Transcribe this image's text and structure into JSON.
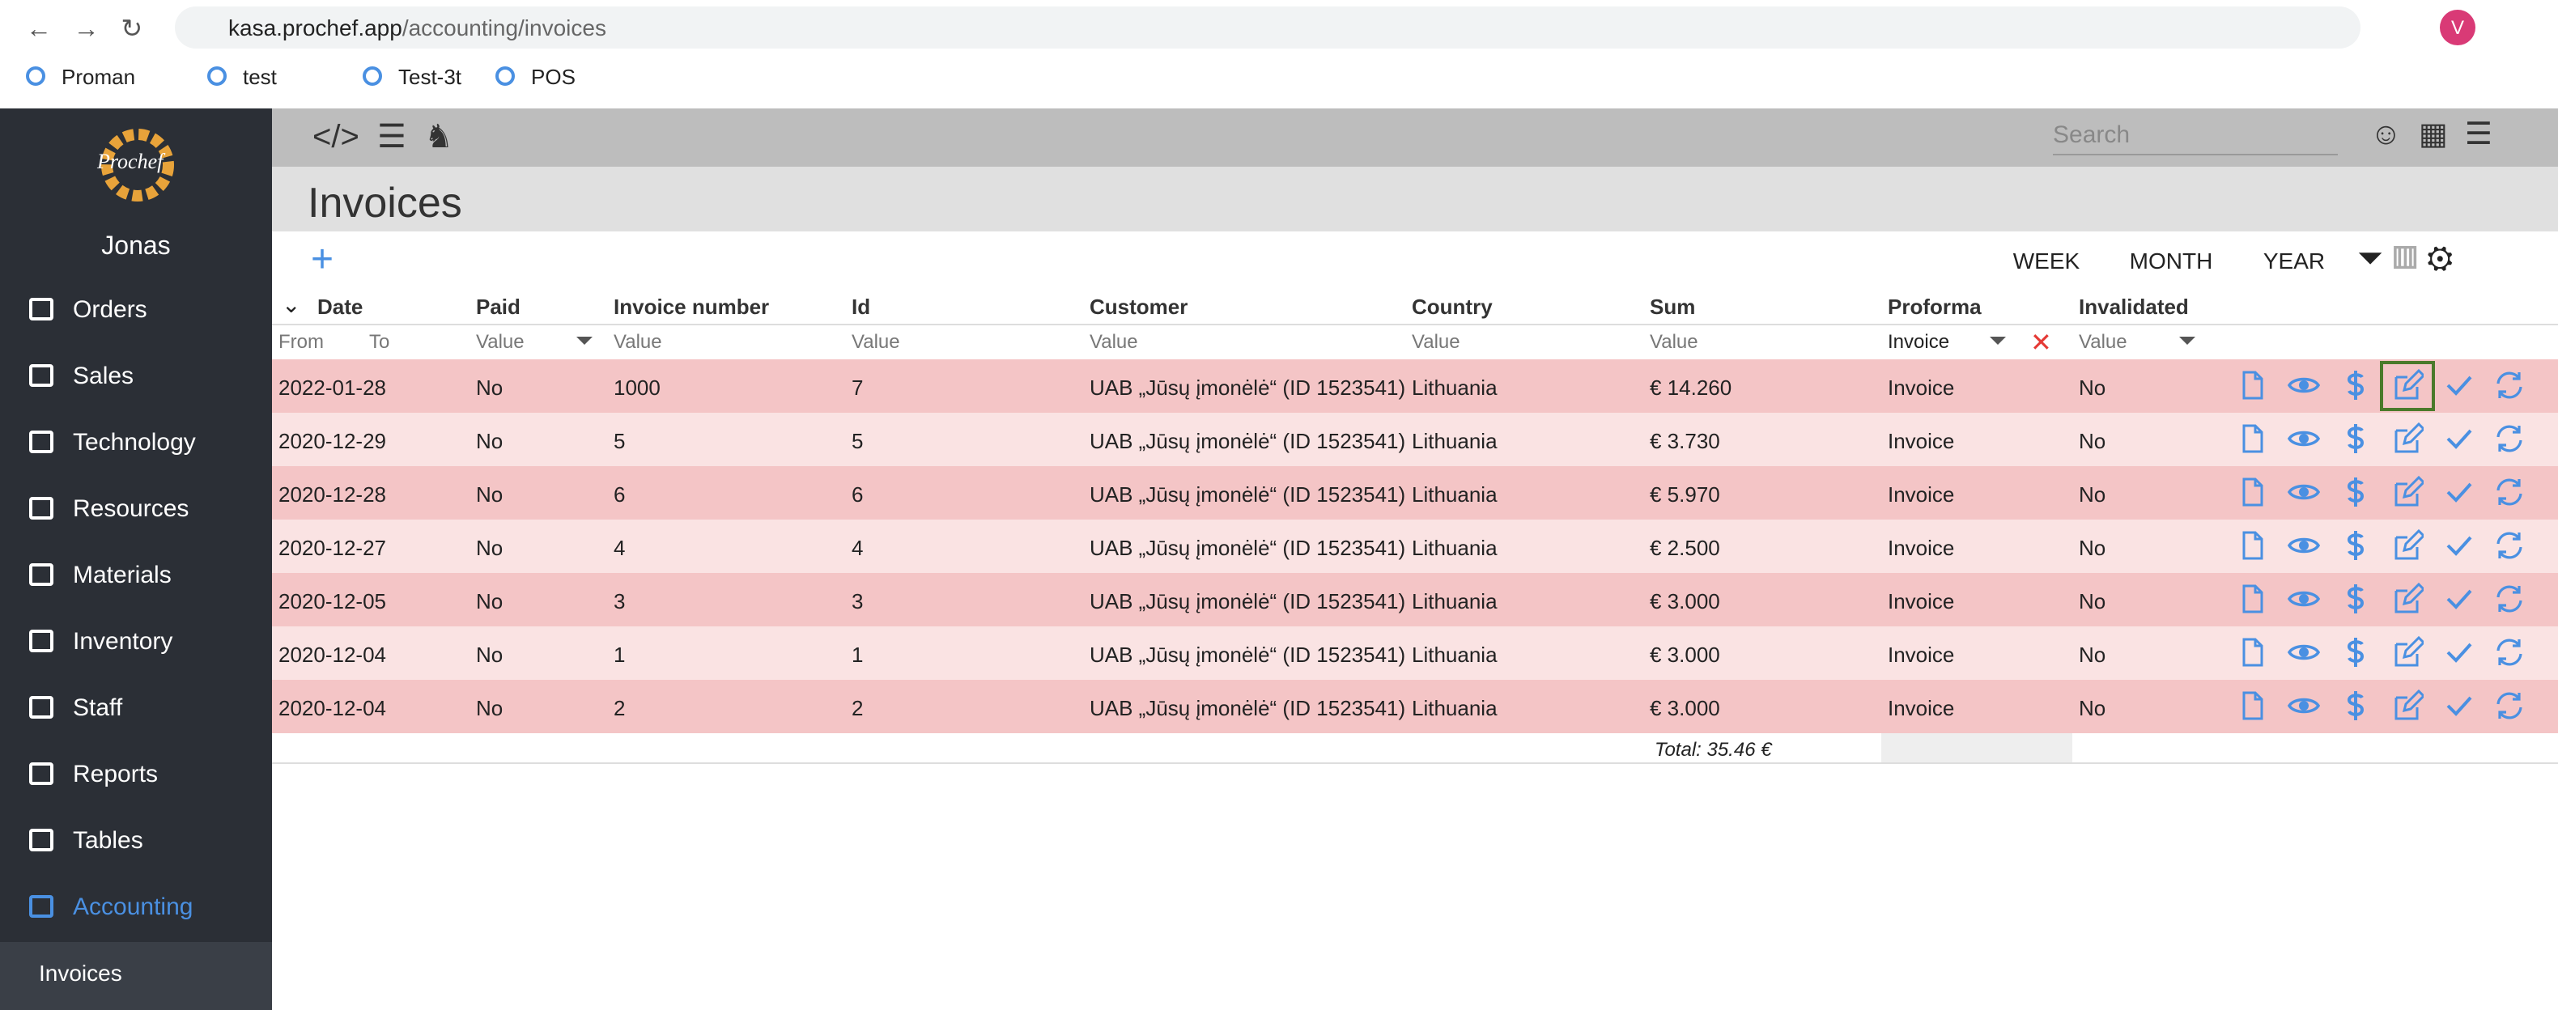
{
  "browser": {
    "url_host": "kasa.prochef.app",
    "url_path": "/accounting/invoices",
    "profile": "V",
    "bookmarks": [
      "Proman",
      "test",
      "Test-3t",
      "POS"
    ]
  },
  "sidebar": {
    "logo": "Prochef",
    "user": "Jonas",
    "nav": [
      "Orders",
      "Sales",
      "Technology",
      "Resources",
      "Materials",
      "Inventory",
      "Staff",
      "Reports",
      "Tables",
      "Accounting"
    ],
    "active_nav": 9,
    "subnav": "Invoices"
  },
  "header": {
    "search_placeholder": "Search",
    "title": "Invoices"
  },
  "toolbar": {
    "periods": [
      "WEEK",
      "MONTH",
      "YEAR"
    ]
  },
  "table": {
    "columns": [
      "Date",
      "Paid",
      "Invoice number",
      "Id",
      "Customer",
      "Country",
      "Sum",
      "Proforma",
      "Invalidated"
    ],
    "filters": [
      "From",
      "To",
      "Value",
      "Value",
      "Value",
      "Value",
      "Value",
      "Value",
      "Invoice",
      "Value"
    ],
    "rows": [
      [
        "2022-01-28",
        "No",
        "1000",
        "7",
        "UAB „Jūsų įmonėlė“ (ID 1523541)",
        "Lithuania",
        "€ 14.260",
        "Invoice",
        "No"
      ],
      [
        "2020-12-29",
        "No",
        "5",
        "5",
        "UAB „Jūsų įmonėlė“ (ID 1523541)",
        "Lithuania",
        "€ 3.730",
        "Invoice",
        "No"
      ],
      [
        "2020-12-28",
        "No",
        "6",
        "6",
        "UAB „Jūsų įmonėlė“ (ID 1523541)",
        "Lithuania",
        "€ 5.970",
        "Invoice",
        "No"
      ],
      [
        "2020-12-27",
        "No",
        "4",
        "4",
        "UAB „Jūsų įmonėlė“ (ID 1523541)",
        "Lithuania",
        "€ 2.500",
        "Invoice",
        "No"
      ],
      [
        "2020-12-05",
        "No",
        "3",
        "3",
        "UAB „Jūsų įmonėlė“ (ID 1523541)",
        "Lithuania",
        "€ 3.000",
        "Invoice",
        "No"
      ],
      [
        "2020-12-04",
        "No",
        "1",
        "1",
        "UAB „Jūsų įmonėlė“ (ID 1523541)",
        "Lithuania",
        "€ 3.000",
        "Invoice",
        "No"
      ],
      [
        "2020-12-04",
        "No",
        "2",
        "2",
        "UAB „Jūsų įmonėlė“ (ID 1523541)",
        "Lithuania",
        "€ 3.000",
        "Invoice",
        "No"
      ]
    ],
    "total": "Total: 35.46 €"
  }
}
